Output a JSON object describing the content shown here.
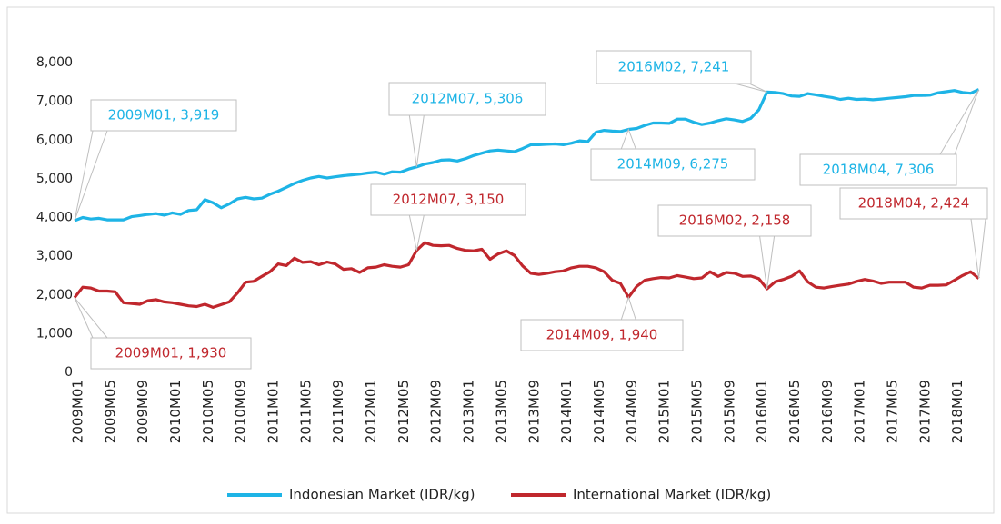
{
  "chart_data": {
    "type": "line",
    "categories": [
      "2009M01",
      null,
      null,
      null,
      "2009M05",
      null,
      null,
      null,
      "2009M09",
      null,
      null,
      null,
      "2010M01",
      null,
      null,
      null,
      "2010M05",
      null,
      null,
      null,
      "2010M09",
      null,
      null,
      null,
      "2011M01",
      null,
      null,
      null,
      "2011M05",
      null,
      null,
      null,
      "2011M09",
      null,
      null,
      null,
      "2012M01",
      null,
      null,
      null,
      "2012M05",
      null,
      null,
      null,
      "2012M09",
      null,
      null,
      null,
      "2013M01",
      null,
      null,
      null,
      "2013M05",
      null,
      null,
      null,
      "2013M09",
      null,
      null,
      null,
      "2014M01",
      null,
      null,
      null,
      "2014M05",
      null,
      null,
      null,
      "2014M09",
      null,
      null,
      null,
      "2015M01",
      null,
      null,
      null,
      "2015M05",
      null,
      null,
      null,
      "2015M09",
      null,
      null,
      null,
      "2016M01",
      null,
      null,
      null,
      "2016M05",
      null,
      null,
      null,
      "2016M09",
      null,
      null,
      null,
      "2017M01",
      null,
      null,
      null,
      "2017M05",
      null,
      null,
      null,
      "2017M09",
      null,
      null,
      null,
      "2018M01",
      null,
      null,
      null
    ],
    "series": [
      {
        "name": "Indonesian Market (IDR/kg)",
        "color": "#1eb4e6",
        "values": [
          3919,
          4000,
          3960,
          3980,
          3940,
          3940,
          3940,
          4020,
          4050,
          4080,
          4100,
          4060,
          4120,
          4080,
          4180,
          4200,
          4460,
          4380,
          4250,
          4350,
          4480,
          4520,
          4480,
          4500,
          4600,
          4680,
          4780,
          4880,
          4960,
          5020,
          5060,
          5020,
          5050,
          5080,
          5100,
          5120,
          5150,
          5170,
          5120,
          5180,
          5170,
          5250,
          5306,
          5380,
          5420,
          5480,
          5490,
          5460,
          5520,
          5600,
          5660,
          5720,
          5740,
          5720,
          5700,
          5780,
          5880,
          5880,
          5890,
          5900,
          5880,
          5920,
          5980,
          5960,
          6200,
          6250,
          6230,
          6220,
          6275,
          6300,
          6380,
          6440,
          6440,
          6430,
          6540,
          6540,
          6460,
          6400,
          6440,
          6500,
          6550,
          6520,
          6480,
          6560,
          6780,
          7241,
          7230,
          7200,
          7140,
          7130,
          7200,
          7170,
          7130,
          7100,
          7050,
          7080,
          7050,
          7060,
          7040,
          7060,
          7080,
          7100,
          7120,
          7150,
          7150,
          7160,
          7220,
          7250,
          7280,
          7230,
          7210,
          7306
        ],
        "value_labels": [
          "2009M01, 3,919",
          null,
          null,
          null,
          null,
          null,
          null,
          null,
          null,
          null,
          null,
          null,
          null,
          null,
          null,
          null,
          null,
          null,
          null,
          null,
          null,
          null,
          null,
          null,
          null,
          null,
          null,
          null,
          null,
          null,
          null,
          null,
          null,
          null,
          null,
          null,
          null,
          null,
          null,
          null,
          null,
          null,
          "2012M07, 5,306",
          null,
          null,
          null,
          null,
          null,
          null,
          null,
          null,
          null,
          null,
          null,
          null,
          null,
          null,
          null,
          null,
          null,
          null,
          null,
          null,
          null,
          null,
          null,
          null,
          null,
          "2014M09, 6,275",
          null,
          null,
          null,
          null,
          null,
          null,
          null,
          null,
          null,
          null,
          null,
          null,
          null,
          null,
          null,
          null,
          "2016M02, 7,241",
          null,
          null,
          null,
          null,
          null,
          null,
          null,
          null,
          null,
          null,
          null,
          null,
          null,
          null,
          null,
          null,
          null,
          null,
          null,
          null,
          null,
          null,
          null,
          null,
          null,
          "2018M04, 7,306"
        ]
      },
      {
        "name": "International Market (IDR/kg)",
        "color": "#c0272d",
        "values": [
          1930,
          2200,
          2180,
          2100,
          2100,
          2080,
          1800,
          1780,
          1760,
          1850,
          1880,
          1820,
          1800,
          1760,
          1720,
          1700,
          1760,
          1680,
          1750,
          1820,
          2050,
          2330,
          2350,
          2480,
          2600,
          2800,
          2760,
          2950,
          2840,
          2860,
          2780,
          2850,
          2800,
          2660,
          2680,
          2580,
          2700,
          2720,
          2780,
          2740,
          2720,
          2780,
          3150,
          3350,
          3280,
          3270,
          3280,
          3200,
          3150,
          3140,
          3180,
          2920,
          3060,
          3140,
          3020,
          2750,
          2560,
          2530,
          2560,
          2600,
          2620,
          2700,
          2740,
          2740,
          2700,
          2600,
          2380,
          2300,
          1940,
          2220,
          2380,
          2420,
          2450,
          2440,
          2500,
          2460,
          2420,
          2440,
          2600,
          2480,
          2580,
          2560,
          2480,
          2490,
          2420,
          2158,
          2340,
          2400,
          2480,
          2620,
          2340,
          2200,
          2180,
          2220,
          2250,
          2280,
          2350,
          2400,
          2360,
          2300,
          2330,
          2330,
          2330,
          2200,
          2180,
          2250,
          2250,
          2260,
          2380,
          2500,
          2600,
          2424
        ],
        "value_labels": [
          "2009M01, 1,930",
          null,
          null,
          null,
          null,
          null,
          null,
          null,
          null,
          null,
          null,
          null,
          null,
          null,
          null,
          null,
          null,
          null,
          null,
          null,
          null,
          null,
          null,
          null,
          null,
          null,
          null,
          null,
          null,
          null,
          null,
          null,
          null,
          null,
          null,
          null,
          null,
          null,
          null,
          null,
          null,
          null,
          "2012M07, 3,150",
          null,
          null,
          null,
          null,
          null,
          null,
          null,
          null,
          null,
          null,
          null,
          null,
          null,
          null,
          null,
          null,
          null,
          null,
          null,
          null,
          null,
          null,
          null,
          null,
          null,
          "2014M09, 1,940",
          null,
          null,
          null,
          null,
          null,
          null,
          null,
          null,
          null,
          null,
          null,
          null,
          null,
          null,
          null,
          null,
          "2016M02, 2,158",
          null,
          null,
          null,
          null,
          null,
          null,
          null,
          null,
          null,
          null,
          null,
          null,
          null,
          null,
          null,
          null,
          null,
          null,
          null,
          null,
          null,
          null,
          null,
          null,
          null,
          "2018M04, 2,424"
        ]
      }
    ],
    "ylim": [
      0,
      8000
    ],
    "yticks": [
      0,
      {
        "value": 1000,
        "label": "1,000"
      },
      {
        "value": 2000,
        "label": "2,000"
      },
      {
        "value": 3000,
        "label": "3,000"
      },
      {
        "value": 4000,
        "label": "4,000"
      },
      {
        "value": 5000,
        "label": "5,000"
      },
      {
        "value": 6000,
        "label": "6,000"
      },
      {
        "value": 7000,
        "label": "7,000"
      },
      {
        "value": 8000,
        "label": "8,000"
      }
    ],
    "grid": false
  }
}
